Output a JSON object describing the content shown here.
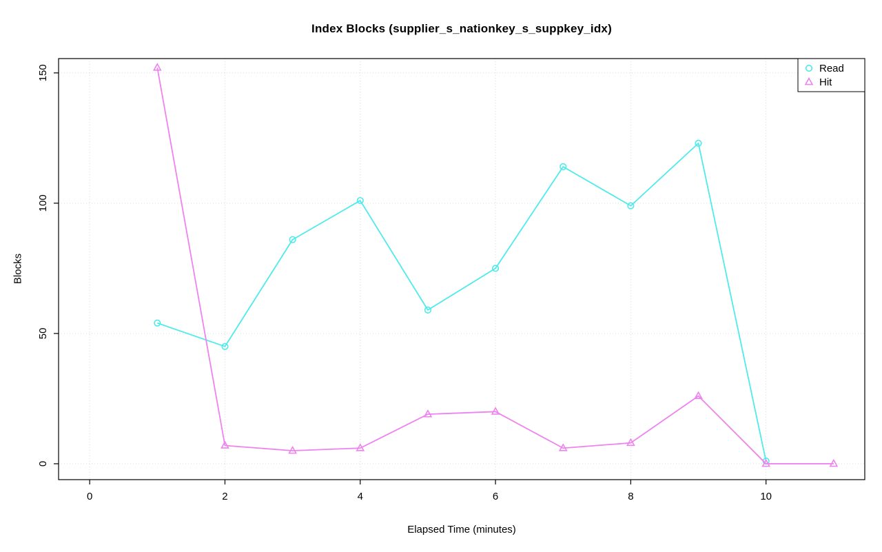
{
  "chart_data": {
    "type": "line",
    "title": "Index Blocks (supplier_s_nationkey_s_suppkey_idx)",
    "xlabel": "Elapsed Time (minutes)",
    "ylabel": "Blocks",
    "xlim": [
      -0.46,
      11.46
    ],
    "ylim": [
      -6.1,
      155.5
    ],
    "xticks": [
      0,
      2,
      4,
      6,
      8,
      10
    ],
    "yticks": [
      0,
      50,
      100,
      150
    ],
    "grid": true,
    "grid_color": "#d9d9d9",
    "legend_position": "top-right",
    "series": [
      {
        "name": "Read",
        "marker": "circle",
        "color": "#4FEAEA",
        "x": [
          1,
          2,
          3,
          4,
          5,
          6,
          7,
          8,
          9,
          10
        ],
        "values": [
          54,
          45,
          86,
          101,
          59,
          75,
          114,
          99,
          123,
          1
        ]
      },
      {
        "name": "Hit",
        "marker": "triangle",
        "color": "#EE82EE",
        "x": [
          1,
          2,
          3,
          4,
          5,
          6,
          7,
          8,
          9,
          10,
          11
        ],
        "values": [
          152,
          7,
          5,
          6,
          19,
          20,
          6,
          8,
          26,
          0,
          0
        ]
      }
    ]
  }
}
